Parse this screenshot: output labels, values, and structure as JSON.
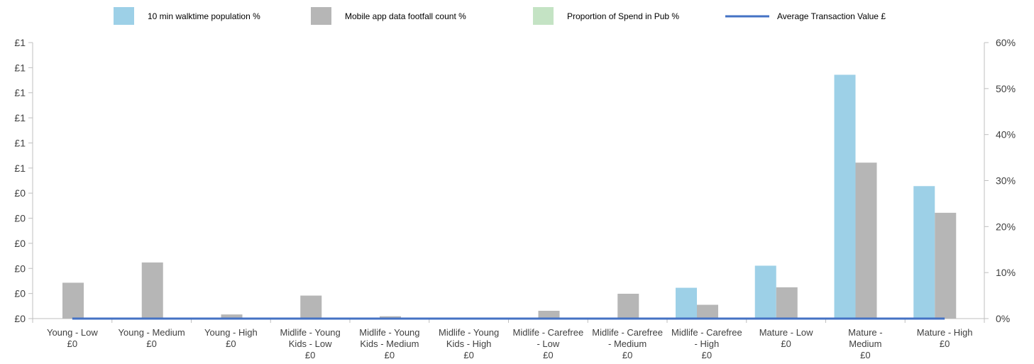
{
  "chart_data": {
    "type": "bar",
    "legend_position": "top",
    "grid": false,
    "categories": [
      [
        "Young - Low",
        "£0"
      ],
      [
        "Young - Medium",
        "£0"
      ],
      [
        "Young - High",
        "£0"
      ],
      [
        "Midlife - Young",
        "Kids - Low",
        "£0"
      ],
      [
        "Midlife - Young",
        "Kids - Medium",
        "£0"
      ],
      [
        "Midlife - Young",
        "Kids - High",
        "£0"
      ],
      [
        "Midlife - Carefree",
        "- Low",
        "£0"
      ],
      [
        "Midlife - Carefree",
        "- Medium",
        "£0"
      ],
      [
        "Midlife - Carefree",
        "- High",
        "£0"
      ],
      [
        "Mature - Low",
        "£0"
      ],
      [
        "Mature -",
        "Medium",
        "£0"
      ],
      [
        "Mature - High",
        "£0"
      ]
    ],
    "y_left_ticks": [
      "£0",
      "£0",
      "£0",
      "£0",
      "£0",
      "£0",
      "£1",
      "£1",
      "£1",
      "£1",
      "£1",
      "£1"
    ],
    "y_right_ticks": [
      "0%",
      "10%",
      "20%",
      "30%",
      "40%",
      "50%",
      "60%"
    ],
    "y_right_range": [
      0,
      60
    ],
    "series": [
      {
        "name": "10 min walktime population %",
        "kind": "bar",
        "axis": "right",
        "color": "#9dd0e7",
        "values": [
          0,
          0,
          0,
          0,
          0,
          0,
          0,
          0,
          6.7,
          11.5,
          53,
          28.8
        ]
      },
      {
        "name": "Mobile app data footfall count %",
        "kind": "bar",
        "axis": "right",
        "color": "#b6b6b6",
        "values": [
          7.8,
          12.2,
          0.9,
          5.0,
          0.5,
          0,
          1.7,
          5.4,
          3.0,
          6.8,
          33.9,
          23.0
        ]
      },
      {
        "name": "Proportion of Spend in Pub %",
        "kind": "bar",
        "axis": "right",
        "color": "#c4e3c4",
        "values": [
          0,
          0,
          0,
          0,
          0,
          0,
          0,
          0,
          0,
          0,
          0,
          0
        ]
      },
      {
        "name": "Average Transaction Value £",
        "kind": "line",
        "axis": "left",
        "color": "#4472c4",
        "values": [
          0,
          0,
          0,
          0,
          0,
          0,
          0,
          0,
          0,
          0,
          0,
          0
        ]
      }
    ]
  }
}
